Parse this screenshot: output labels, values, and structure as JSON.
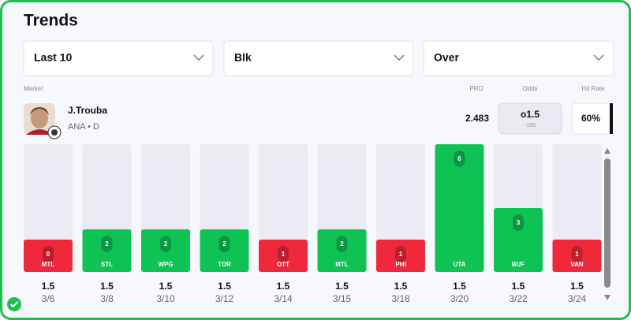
{
  "header": {
    "title": "Trends"
  },
  "filters": [
    "Last 10",
    "Blk",
    "Over"
  ],
  "columns": {
    "market": "Market",
    "pro": "PRO",
    "odds": "Odds",
    "hit_rate": "Hit Rate"
  },
  "player": {
    "name": "J.Trouba",
    "info": "ANA • D",
    "pro": "2.483",
    "odds_line": "o1.5",
    "odds_price": "-150",
    "hit_rate": "60%"
  },
  "chart_data": {
    "type": "bar",
    "categories": [
      "MTL",
      "STL",
      "WPG",
      "TOR",
      "OTT",
      "MTL",
      "PHI",
      "UTA",
      "BUF",
      "VAN"
    ],
    "values": [
      0,
      2,
      2,
      2,
      1,
      2,
      1,
      6,
      3,
      1
    ],
    "lines": [
      1.5,
      1.5,
      1.5,
      1.5,
      1.5,
      1.5,
      1.5,
      1.5,
      1.5,
      1.5
    ],
    "dates": [
      "3/6",
      "3/8",
      "3/10",
      "3/12",
      "3/14",
      "3/15",
      "3/18",
      "3/20",
      "3/22",
      "3/24"
    ],
    "ylim": [
      0,
      6
    ],
    "colors": {
      "over": "#0fc254",
      "under": "#f0283c"
    }
  }
}
